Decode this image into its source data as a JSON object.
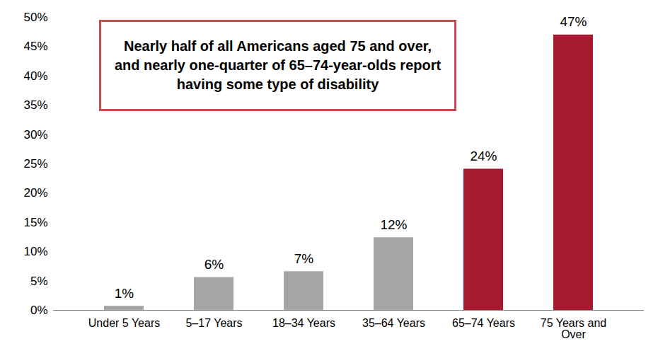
{
  "chart_data": {
    "type": "bar",
    "annotation": "Nearly half of all Americans aged 75 and over, and nearly one-quarter of 65–74-year-olds report having some type of disability",
    "categories": [
      "Under 5 Years",
      "5–17 Years",
      "18–34 Years",
      "35–64 Years",
      "65–74 Years",
      "75 Years and Over"
    ],
    "values": [
      0.7,
      5.6,
      6.6,
      12.4,
      24.1,
      47.0
    ],
    "value_labels": [
      "1%",
      "6%",
      "7%",
      "12%",
      "24%",
      "47%"
    ],
    "colors": [
      "#a5a5a5",
      "#a5a5a5",
      "#a5a5a5",
      "#a5a5a5",
      "#a6192e",
      "#a6192e"
    ],
    "ylim": [
      0,
      50
    ],
    "yticks": [
      {
        "value": 0,
        "label": "0%"
      },
      {
        "value": 5,
        "label": "5%"
      },
      {
        "value": 10,
        "label": "10%"
      },
      {
        "value": 15,
        "label": "15%"
      },
      {
        "value": 20,
        "label": "20%"
      },
      {
        "value": 25,
        "label": "25%"
      },
      {
        "value": 30,
        "label": "30%"
      },
      {
        "value": 35,
        "label": "35%"
      },
      {
        "value": 40,
        "label": "40%"
      },
      {
        "value": 45,
        "label": "45%"
      },
      {
        "value": 50,
        "label": "50%"
      }
    ],
    "grid": false,
    "data_labels": true
  }
}
